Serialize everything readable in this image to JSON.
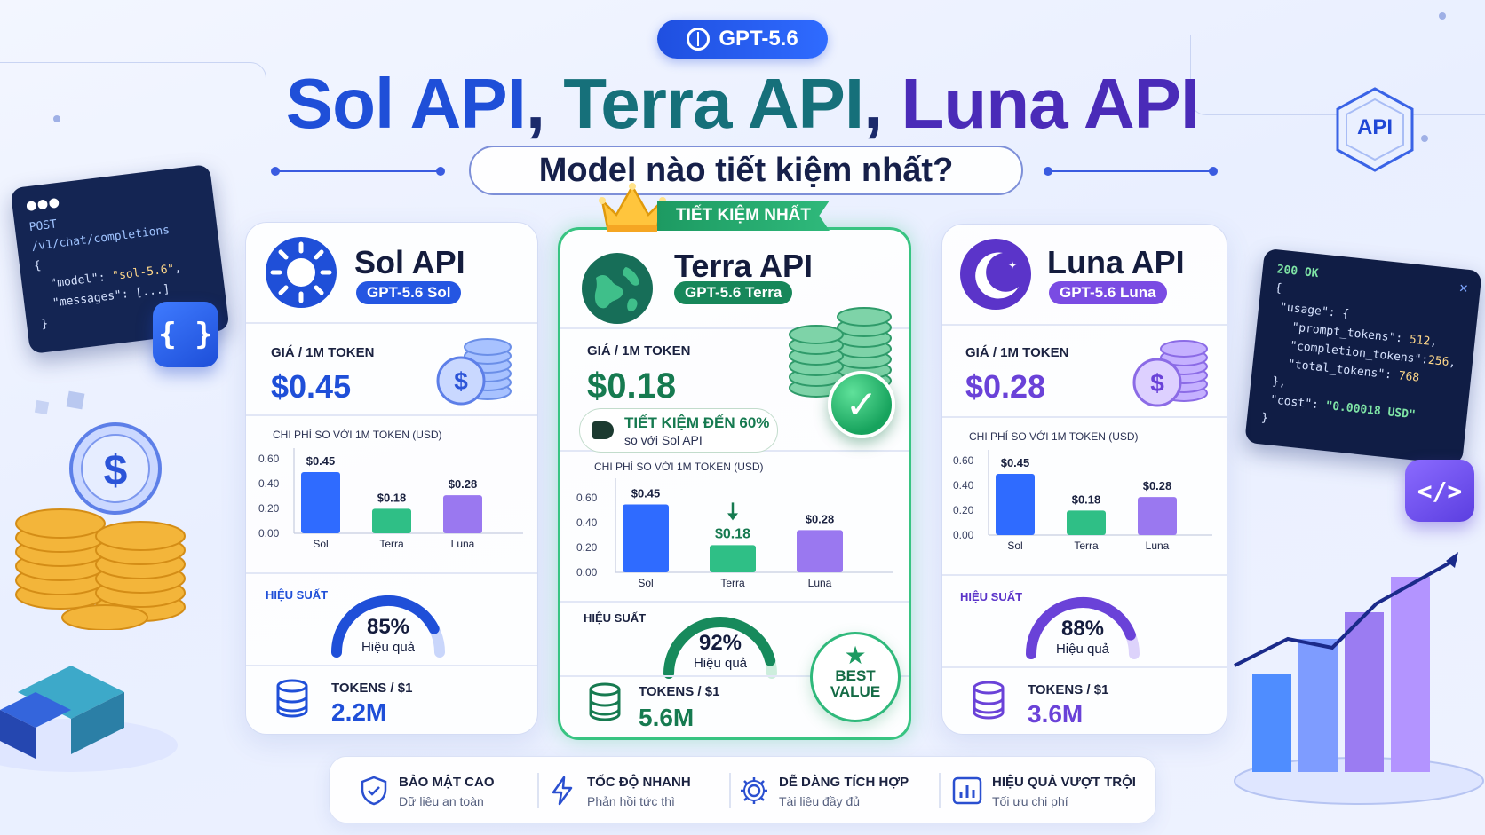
{
  "header": {
    "badge": "GPT-5.6",
    "title_sol": "Sol API",
    "title_terra": "Terra API",
    "title_luna": "Luna API",
    "separator": ",",
    "subtitle": "Model nào tiết kiệm nhất?"
  },
  "ribbon": "TIẾT KIỆM NHẤT",
  "code_left": {
    "line1": "POST /v1/chat/completions",
    "line2": "{",
    "line3_key": "\"model\"",
    "line3_val": "\"sol-5.6\"",
    "line4_key": "\"messages\"",
    "line4_val": "[...]",
    "line5": "}",
    "button_glyph": "{ }"
  },
  "code_right": {
    "status": "200 OK",
    "l1": "{",
    "l2": "\"usage\": {",
    "l3_key": "\"prompt_tokens\"",
    "l3_val": "512",
    "l4_key": "\"completion_tokens\"",
    "l4_val": "256",
    "l5_key": "\"total_tokens\"",
    "l5_val": "768",
    "l6": "},",
    "l7_key": "\"cost\"",
    "l7_val": "\"0.00018 USD\"",
    "l8": "}",
    "button_glyph": "</>"
  },
  "api_badge": "API",
  "chart_axis": [
    "0.60",
    "0.40",
    "0.20",
    "0.00"
  ],
  "chart_categories": [
    "Sol",
    "Terra",
    "Luna"
  ],
  "chart_value_labels": [
    "$0.45",
    "$0.18",
    "$0.28"
  ],
  "chart_data": [
    {
      "type": "bar",
      "title": "CHI PHÍ SO VỚI 1M TOKEN (USD)",
      "categories": [
        "Sol",
        "Terra",
        "Luna"
      ],
      "values": [
        0.45,
        0.18,
        0.28
      ],
      "ylim": [
        0,
        0.6
      ]
    },
    {
      "type": "bar",
      "title": "CHI PHÍ SO VỚI 1M TOKEN (USD)",
      "categories": [
        "Sol",
        "Terra",
        "Luna"
      ],
      "values": [
        0.45,
        0.18,
        0.28
      ],
      "ylim": [
        0,
        0.6
      ]
    },
    {
      "type": "bar",
      "title": "CHI PHÍ SO VỚI 1M TOKEN (USD)",
      "categories": [
        "Sol",
        "Terra",
        "Luna"
      ],
      "values": [
        0.45,
        0.18,
        0.28
      ],
      "ylim": [
        0,
        0.6
      ]
    }
  ],
  "cards": {
    "sol": {
      "name": "Sol API",
      "model": "GPT-5.6 Sol",
      "price_label": "GIÁ / 1M TOKEN",
      "price": "$0.45",
      "chart_title": "CHI PHÍ SO VỚI 1M TOKEN (USD)",
      "perf_label": "HIỆU SUẤT",
      "perf_value": "85%",
      "perf_fraction": 0.85,
      "perf_sub": "Hiệu quả",
      "tokens_label": "TOKENS / $1",
      "tokens_value": "2.2M",
      "accent": "#1f4fd8"
    },
    "terra": {
      "name": "Terra API",
      "model": "GPT-5.6 Terra",
      "price_label": "GIÁ / 1M TOKEN",
      "price": "$0.18",
      "save_main": "TIẾT KIỆM ĐẾN 60%",
      "save_sub": "so với Sol API",
      "chart_title": "CHI PHÍ SO VỚI 1M TOKEN (USD)",
      "perf_label": "HIỆU SUẤT",
      "perf_value": "92%",
      "perf_fraction": 0.92,
      "perf_sub": "Hiệu quả",
      "tokens_label": "TOKENS / $1",
      "tokens_value": "5.6M",
      "best_line1": "BEST",
      "best_line2": "VALUE",
      "accent": "#167a50"
    },
    "luna": {
      "name": "Luna API",
      "model": "GPT-5.6 Luna",
      "price_label": "GIÁ / 1M TOKEN",
      "price": "$0.28",
      "chart_title": "CHI PHÍ SO VỚI 1M TOKEN (USD)",
      "perf_label": "HIỆU SUẤT",
      "perf_value": "88%",
      "perf_fraction": 0.88,
      "perf_sub": "Hiệu quả",
      "tokens_label": "TOKENS / $1",
      "tokens_value": "3.6M",
      "accent": "#5b34c9"
    }
  },
  "features": [
    {
      "title": "BẢO MẬT CAO",
      "sub": "Dữ liệu an toàn",
      "icon": "shield-check-icon"
    },
    {
      "title": "TỐC ĐỘ NHANH",
      "sub": "Phản hồi tức thì",
      "icon": "lightning-icon"
    },
    {
      "title": "DỄ DÀNG TÍCH HỢP",
      "sub": "Tài liệu đầy đủ",
      "icon": "gear-icon"
    },
    {
      "title": "HIỆU QUẢ VƯỢT TRỘI",
      "sub": "Tối ưu chi phí",
      "icon": "bar-chart-icon"
    }
  ],
  "colors": {
    "sol_bar": "#2f6bff",
    "terra_bar": "#2fbf86",
    "luna_bar": "#9a78f0",
    "sol_accent": "#1f4fd8",
    "terra_accent": "#1d9a62",
    "luna_accent": "#6a42d8"
  }
}
